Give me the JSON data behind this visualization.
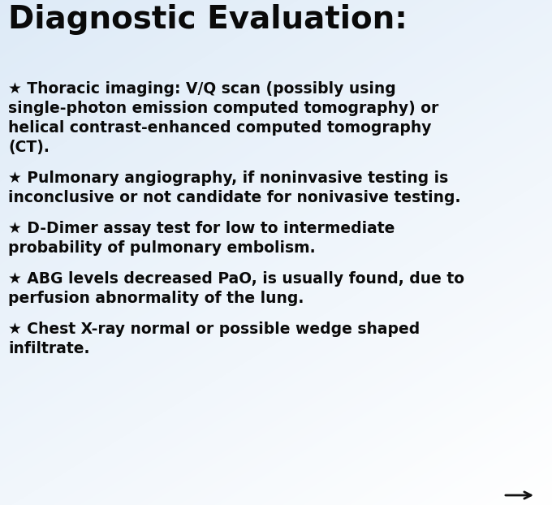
{
  "title": "Diagnostic Evaluation:",
  "text_color": "#0a0a0a",
  "title_fontsize": 28,
  "body_fontsize": 13.5,
  "bullet": "★",
  "items": [
    [
      "Thoracic imaging: V/Q scan (possibly using",
      "single-photon emission computed tomography) or",
      "helical contrast-enhanced computed tomography",
      "(CT)."
    ],
    [
      "Pulmonary angiography, if noninvasive testing is",
      "inconclusive or not candidate for nonivasive testing."
    ],
    [
      "D-Dimer assay test for low to intermediate",
      "probability of pulmonary embolism."
    ],
    [
      "ABG levels decreased PaO, is usually found, due to",
      "perfusion abnormality of the lung."
    ],
    [
      "Chest X-ray normal or possible wedge shaped",
      "infiltrate."
    ]
  ],
  "bg_colors": [
    "#c5d9e8",
    "#dce9f2",
    "#eaf2f8",
    "#f2f8fc",
    "#f8fbfd",
    "#ffffff"
  ],
  "arrow_color": "#111111"
}
